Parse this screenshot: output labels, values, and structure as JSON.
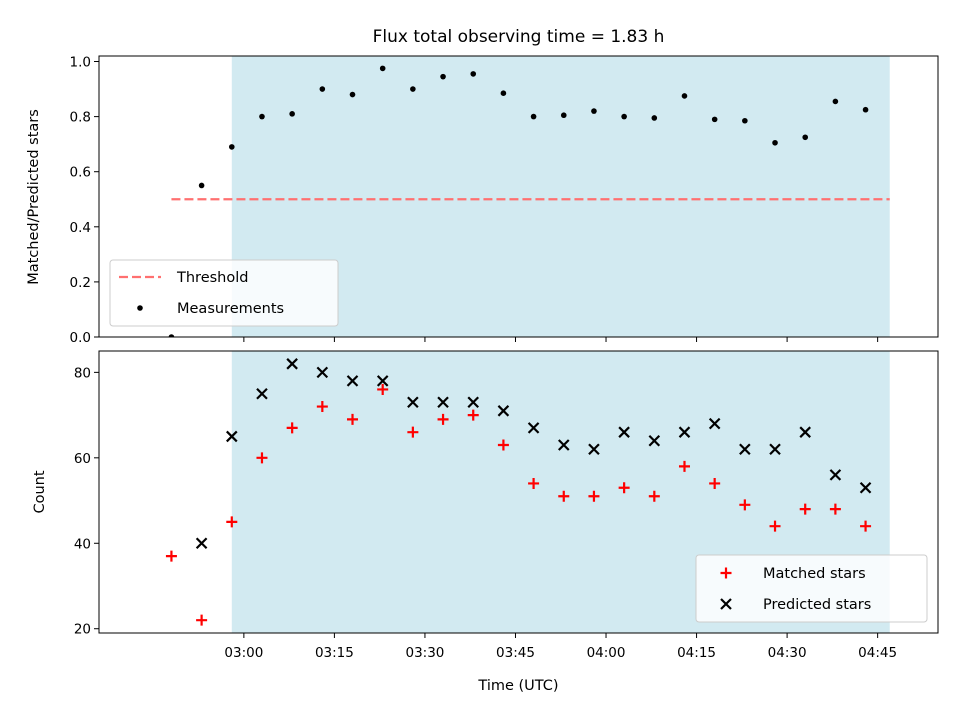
{
  "chart_data": [
    {
      "type": "scatter",
      "title": "Flux total observing time = 1.83 h",
      "xlabel": "",
      "ylabel": "Matched/Predicted stars",
      "ylim": [
        0.0,
        1.02
      ],
      "yticks": [
        "0.0",
        "0.2",
        "0.4",
        "0.6",
        "0.8",
        "1.0"
      ],
      "grid": false,
      "shaded_region": {
        "x_start": "02:58",
        "x_end": "04:47",
        "color": "#add8e6"
      },
      "threshold": {
        "name": "Threshold",
        "value": 0.5,
        "x_start": "02:48",
        "x_end": "04:47",
        "color": "#ff7070",
        "style": "dashed"
      },
      "series": [
        {
          "name": "Measurements",
          "marker": "dot",
          "color": "#000000",
          "x": [
            "02:48",
            "02:53",
            "02:58",
            "03:03",
            "03:08",
            "03:13",
            "03:18",
            "03:23",
            "03:28",
            "03:33",
            "03:38",
            "03:43",
            "03:48",
            "03:53",
            "03:58",
            "04:03",
            "04:08",
            "04:13",
            "04:18",
            "04:23",
            "04:28",
            "04:33",
            "04:38",
            "04:43",
            "04:48"
          ],
          "y": [
            0.0,
            0.55,
            0.69,
            0.8,
            0.81,
            0.9,
            0.88,
            0.975,
            0.9,
            0.945,
            0.955,
            0.885,
            0.8,
            0.805,
            0.82,
            0.8,
            0.795,
            0.875,
            0.79,
            0.785,
            0.705,
            0.725,
            0.855,
            0.825,
            null
          ]
        }
      ],
      "legend": {
        "placement": "lower-left",
        "entries": [
          "Threshold",
          "Measurements"
        ]
      }
    },
    {
      "type": "scatter",
      "xlabel": "Time (UTC)",
      "ylabel": "Count",
      "ylim": [
        19,
        85
      ],
      "yticks": [
        "20",
        "40",
        "60",
        "80"
      ],
      "xticks": [
        "03:00",
        "03:15",
        "03:30",
        "03:45",
        "04:00",
        "04:15",
        "04:30",
        "04:45"
      ],
      "grid": false,
      "shaded_region": {
        "x_start": "02:58",
        "x_end": "04:47",
        "color": "#add8e6"
      },
      "series": [
        {
          "name": "Matched stars",
          "marker": "plus",
          "color": "#ff0000",
          "x": [
            "02:48",
            "02:53",
            "02:58",
            "03:03",
            "03:08",
            "03:13",
            "03:18",
            "03:23",
            "03:28",
            "03:33",
            "03:38",
            "03:43",
            "03:48",
            "03:53",
            "03:58",
            "04:03",
            "04:08",
            "04:13",
            "04:18",
            "04:23",
            "04:28",
            "04:33",
            "04:38",
            "04:43",
            "04:48"
          ],
          "y": [
            37,
            22,
            45,
            60,
            67,
            72,
            69,
            76,
            66,
            69,
            70,
            63,
            54,
            51,
            51,
            53,
            51,
            58,
            54,
            49,
            44,
            48,
            48,
            44,
            null
          ]
        },
        {
          "name": "Predicted stars",
          "marker": "x",
          "color": "#000000",
          "x": [
            "02:53",
            "02:58",
            "03:03",
            "03:08",
            "03:13",
            "03:18",
            "03:23",
            "03:28",
            "03:33",
            "03:38",
            "03:43",
            "03:48",
            "03:53",
            "03:58",
            "04:03",
            "04:08",
            "04:13",
            "04:18",
            "04:23",
            "04:28",
            "04:33",
            "04:38",
            "04:43",
            "04:48"
          ],
          "y": [
            40,
            65,
            75,
            82,
            80,
            78,
            78,
            73,
            73,
            73,
            71,
            67,
            63,
            62,
            66,
            64,
            66,
            68,
            62,
            62,
            66,
            56,
            53,
            null
          ]
        }
      ],
      "legend": {
        "placement": "lower-right",
        "entries": [
          "Matched stars",
          "Predicted stars"
        ]
      }
    }
  ]
}
